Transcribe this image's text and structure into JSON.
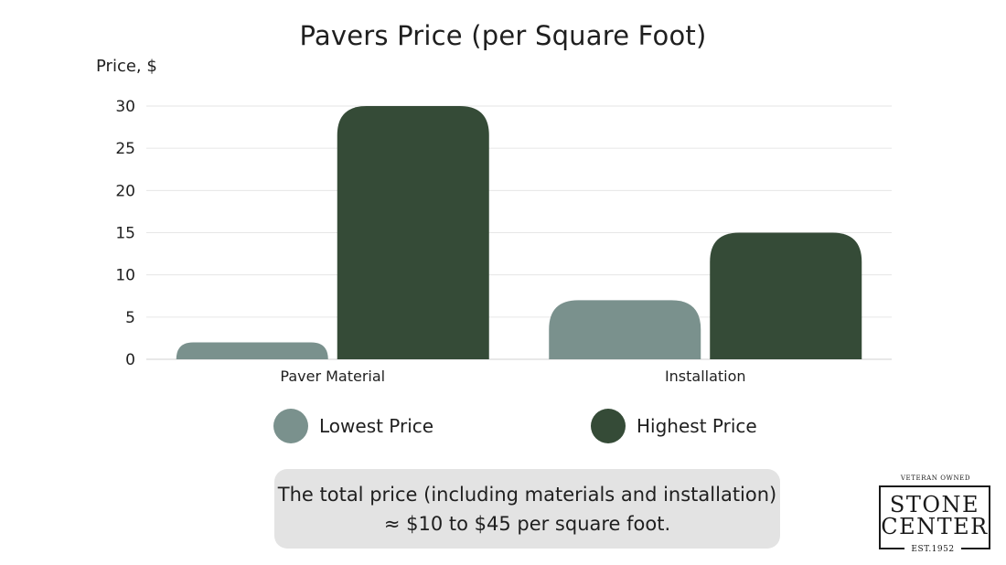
{
  "chart_data": {
    "type": "bar",
    "title": "Pavers Price (per Square Foot)",
    "ylabel": "Price, $",
    "xlabel": "",
    "categories": [
      "Paver Material",
      "Installation"
    ],
    "series": [
      {
        "name": "Lowest Price",
        "values": [
          2,
          7
        ],
        "color": "#7a918d"
      },
      {
        "name": "Highest Price",
        "values": [
          30,
          15
        ],
        "color": "#354b37"
      }
    ],
    "ylim": [
      0,
      30
    ],
    "yticks": [
      "0",
      "5",
      "10",
      "15",
      "20",
      "25",
      "30"
    ],
    "grid": true,
    "legend_placement": "bottom"
  },
  "note": {
    "line1": "The total price (including materials and installation)",
    "line2": "≈ $10 to $45 per square foot."
  },
  "logo": {
    "top": "VETERAN OWNED",
    "line1": "STONE",
    "line2": "CENTER",
    "bottom": "EST.1952"
  }
}
